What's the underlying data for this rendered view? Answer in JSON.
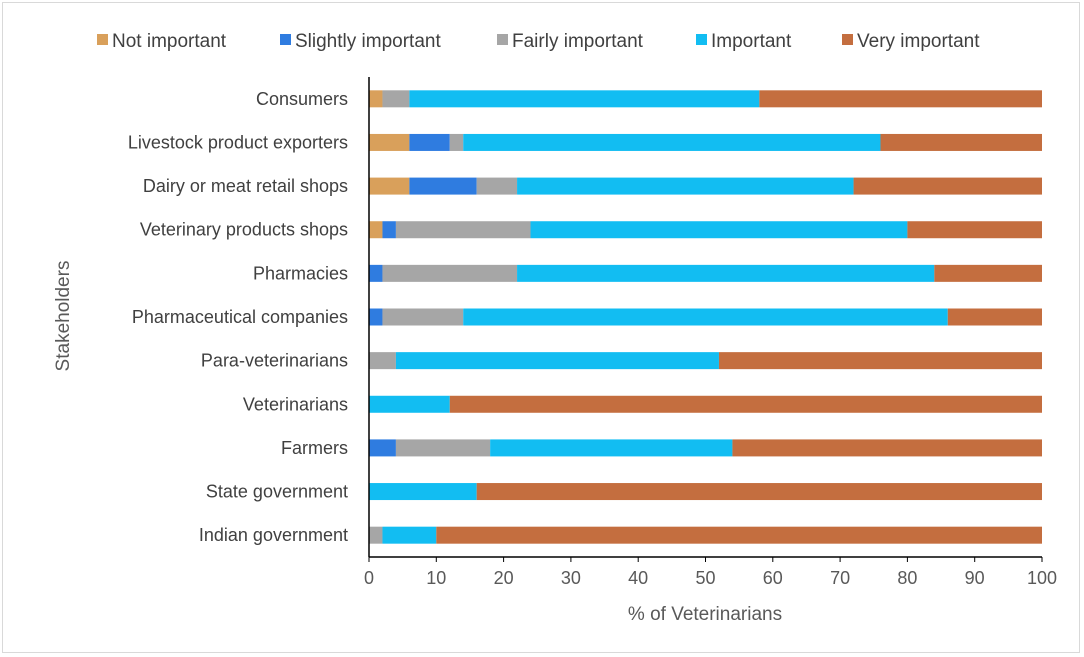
{
  "chart_data": {
    "type": "bar",
    "orientation": "horizontal",
    "stacked": true,
    "xlabel": "% of Veterinarians",
    "ylabel": "Stakeholders",
    "xlim": [
      0,
      100
    ],
    "xticks": [
      0,
      10,
      20,
      30,
      40,
      50,
      60,
      70,
      80,
      90,
      100
    ],
    "legend_position": "top",
    "categories": [
      "Consumers",
      "Livestock product exporters",
      "Dairy or meat retail shops",
      "Veterinary products shops",
      "Pharmacies",
      "Pharmaceutical companies",
      "Para-veterinarians",
      "Veterinarians",
      "Farmers",
      "State government",
      "Indian government"
    ],
    "series": [
      {
        "name": "Not important",
        "color": "#d9a05b",
        "values": [
          2,
          6,
          6,
          2,
          0,
          0,
          0,
          0,
          0,
          0,
          0
        ]
      },
      {
        "name": "Slightly important",
        "color": "#2f7ce0",
        "values": [
          0,
          6,
          10,
          2,
          2,
          2,
          0,
          0,
          4,
          0,
          0
        ]
      },
      {
        "name": "Fairly important",
        "color": "#a6a6a6",
        "values": [
          4,
          2,
          6,
          20,
          20,
          12,
          4,
          0,
          14,
          0,
          2
        ]
      },
      {
        "name": "Important",
        "color": "#12bdf2",
        "values": [
          52,
          62,
          50,
          56,
          62,
          72,
          48,
          12,
          36,
          16,
          8
        ]
      },
      {
        "name": "Very important",
        "color": "#c46e3f",
        "values": [
          42,
          24,
          28,
          20,
          16,
          14,
          48,
          88,
          46,
          84,
          90
        ]
      }
    ]
  }
}
